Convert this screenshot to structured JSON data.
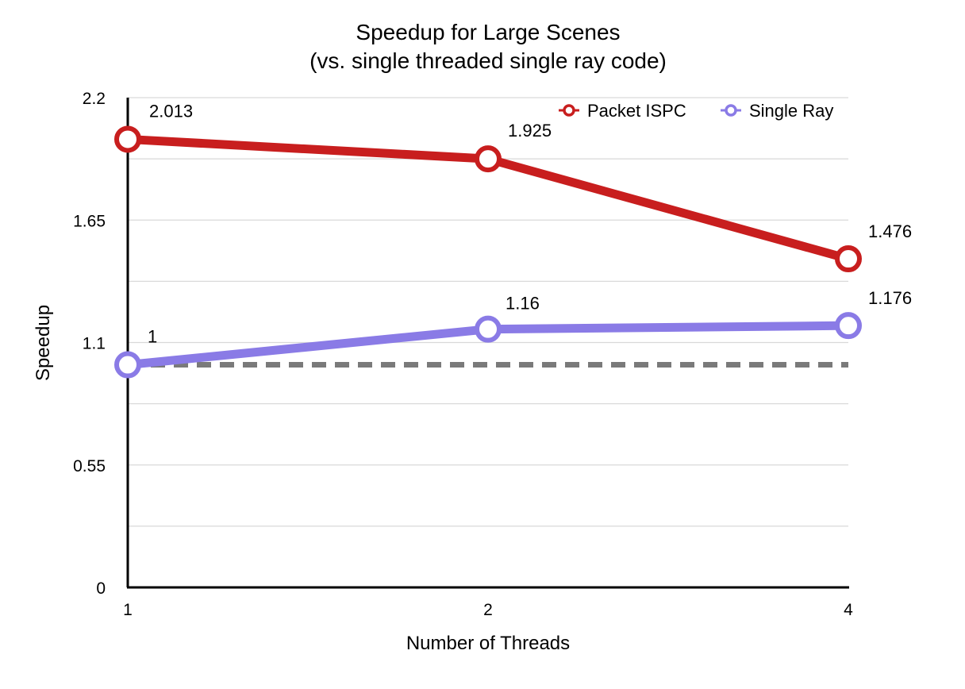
{
  "chart_data": {
    "type": "line",
    "title": "Speedup for Large Scenes",
    "subtitle": "(vs. single threaded single ray code)",
    "xlabel": "Number of Threads",
    "ylabel": "Speedup",
    "categories": [
      "1",
      "2",
      "4"
    ],
    "y_ticks": [
      "0",
      "0.55",
      "1.1",
      "1.65",
      "2.2"
    ],
    "ylim": [
      0,
      2.2
    ],
    "grid": true,
    "legend_position": "top-right",
    "baseline": {
      "value": 1,
      "style": "dashed",
      "color": "#7a7a7a"
    },
    "series": [
      {
        "name": "Packet ISPC",
        "values": [
          2.013,
          1.925,
          1.476
        ],
        "labels": [
          "2.013",
          "1.925",
          "1.476"
        ],
        "color": "#c81e1e"
      },
      {
        "name": "Single Ray",
        "values": [
          1,
          1.16,
          1.176
        ],
        "labels": [
          "1",
          "1.16",
          "1.176"
        ],
        "color": "#8a7be6"
      }
    ]
  }
}
